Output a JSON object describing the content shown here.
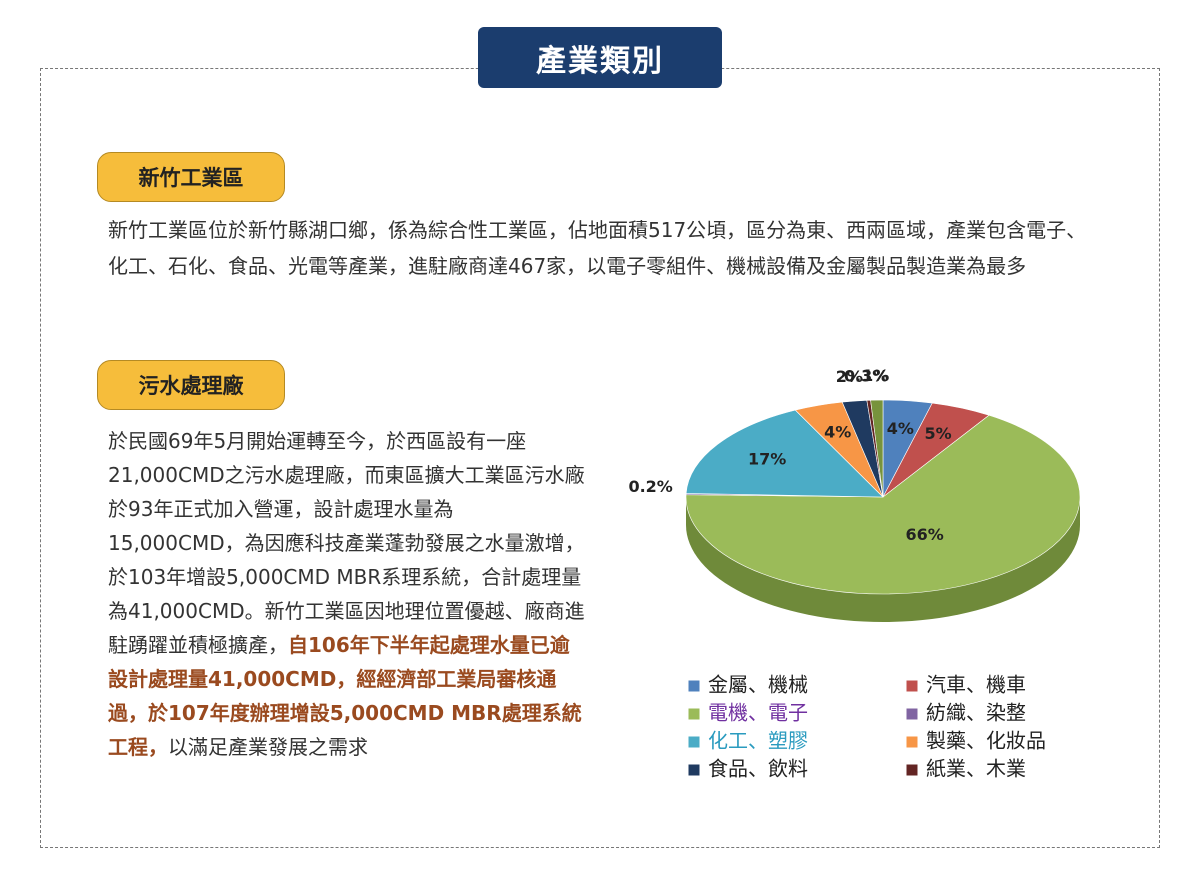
{
  "title": "產業類別",
  "sections": [
    {
      "heading": "新竹工業區",
      "paragraph": "新竹工業區位於新竹縣湖口鄉，係為綜合性工業區，佔地面積517公頃，區分為東、西兩區域，產業包含電子、化工、石化、食品、光電等產業，進駐廠商達467家，以電子零組件、機械設備及金屬製品製造業為最多"
    },
    {
      "heading": "污水處理廠",
      "paragraph": [
        "於民國69年5月開始運轉至今，於西區設有一座21,000CMD之污水處理廠，而東區擴大工業區污水廠於93年正式加入營運，設計處理水量為15,000CMD，為因應科技產業蓬勃發展之水量激增，於103年增設5,000CMD MBR系理系統，合計處理量為41,000CMD。新竹工業區因地理位置優越、廠商進駐踴躍並積極擴產，",
        "自106年下半年起處理水量已逾設計處理量41,000CMD，經經濟部工業局審核通過，於107年度辦理增設5,000CMD MBR處理系統工程，",
        "以滿足產業發展之需求"
      ]
    }
  ],
  "chart_data": {
    "type": "pie",
    "categories": [
      "金屬、機械",
      "汽車、機車",
      "電機、電子",
      "紡織、染整",
      "化工、塑膠",
      "製藥、化妝品",
      "食品、飲料",
      "紙業、木業",
      null
    ],
    "values": [
      4,
      5,
      66,
      0.2,
      17,
      4,
      2,
      0.3,
      1
    ],
    "value_labels": [
      "4%",
      "5%",
      "66%",
      "0.2%",
      "17%",
      "4%",
      "2%",
      "0.3%",
      "1%"
    ],
    "colors": [
      "#4f81bd",
      "#c0504d",
      "#9bbb59",
      "#8064a2",
      "#4bacc6",
      "#f79646",
      "#1f3a60",
      "#632523",
      "#77933c"
    ]
  }
}
